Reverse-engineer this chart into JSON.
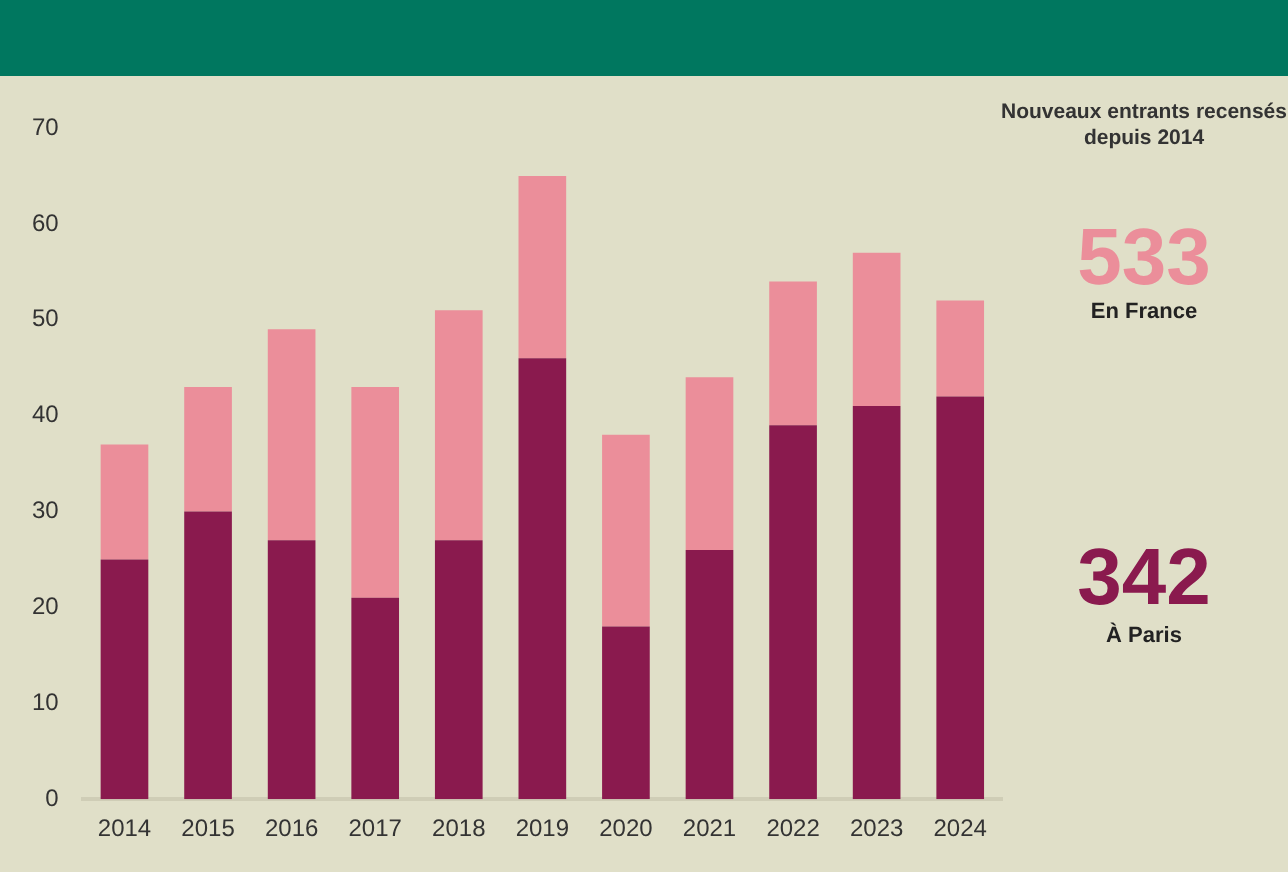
{
  "chart_data": {
    "type": "bar",
    "stacked": true,
    "categories": [
      "2014",
      "2015",
      "2016",
      "2017",
      "2018",
      "2019",
      "2020",
      "2021",
      "2022",
      "2023",
      "2024"
    ],
    "series": [
      {
        "color": "#8a1a4e",
        "values": [
          25,
          30,
          27,
          21,
          27,
          46,
          18,
          26,
          39,
          41,
          42
        ]
      },
      {
        "color": "#eb8e9a",
        "values": [
          12,
          13,
          22,
          22,
          24,
          19,
          20,
          18,
          15,
          16,
          10
        ]
      }
    ],
    "ylim": [
      0,
      70
    ],
    "yticks": [
      0,
      10,
      20,
      30,
      40,
      50,
      60,
      70
    ],
    "grid": false,
    "legend": false,
    "annotations": [
      "Nouveaux entrants recensés depuis 2014",
      "533",
      "En France",
      "342",
      "À Paris"
    ]
  }
}
